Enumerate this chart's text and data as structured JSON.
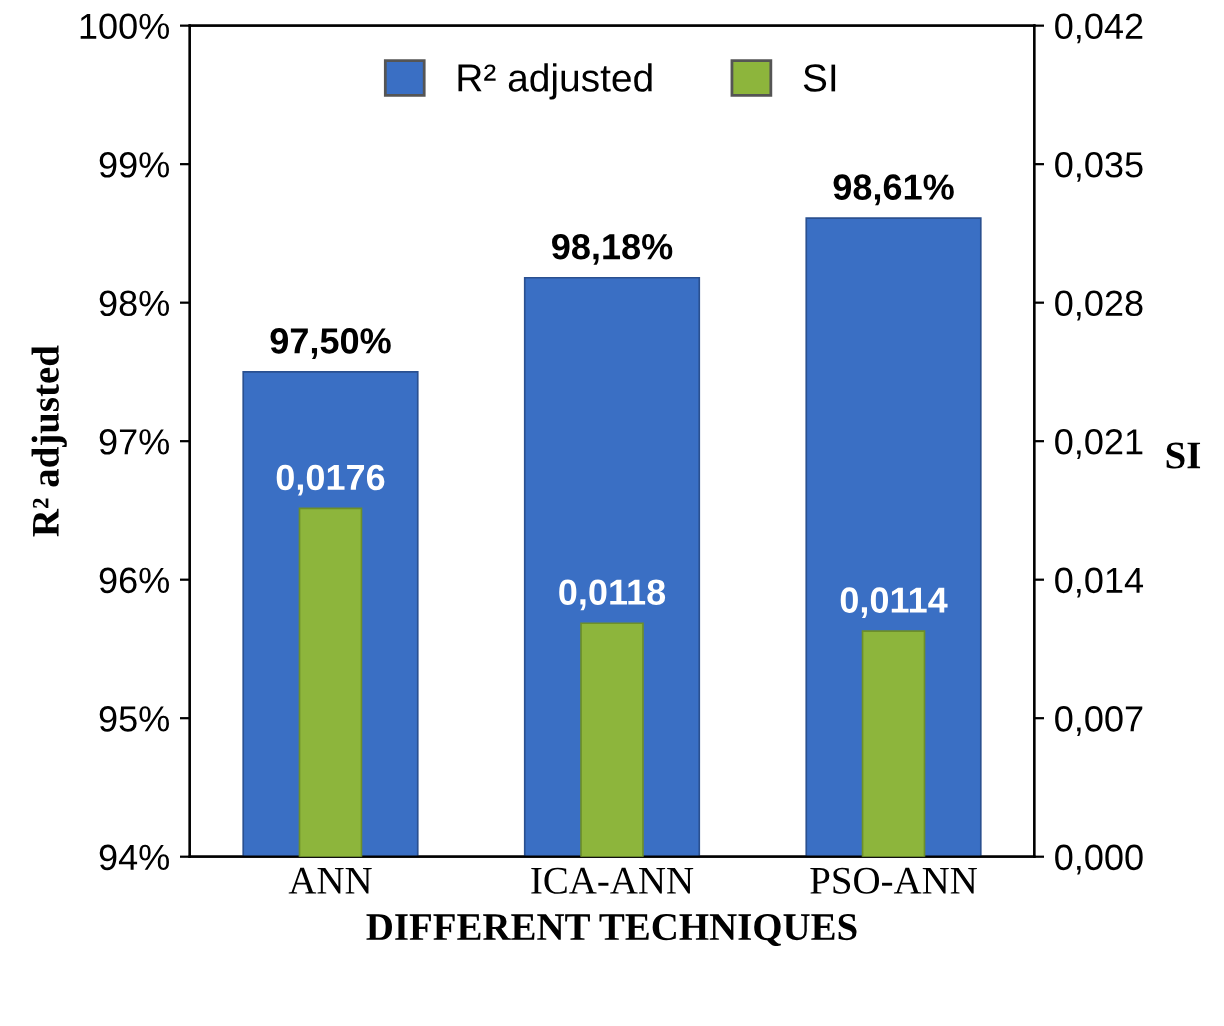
{
  "chart_data": {
    "type": "bar",
    "categories": [
      "ANN",
      "ICA-ANN",
      "PSO-ANN"
    ],
    "xlabel": "DIFFERENT TECHNIQUES",
    "ylabel": "R² adjusted",
    "y2label": "SI",
    "series": [
      {
        "name": "R² adjusted",
        "color": "#3a6fc4",
        "values": [
          97.5,
          98.18,
          98.61
        ],
        "value_labels": [
          "97,50%",
          "98,18%",
          "98,61%"
        ]
      },
      {
        "name": "SI",
        "color": "#8db53c",
        "axis": "y2",
        "values": [
          0.0176,
          0.0118,
          0.0114
        ],
        "value_labels": [
          "0,0176",
          "0,0118",
          "0,0114"
        ]
      }
    ],
    "ylim": [
      94,
      100
    ],
    "yticks": [
      {
        "value": 94,
        "label": "94%"
      },
      {
        "value": 95,
        "label": "95%"
      },
      {
        "value": 96,
        "label": "96%"
      },
      {
        "value": 97,
        "label": "97%"
      },
      {
        "value": 98,
        "label": "98%"
      },
      {
        "value": 99,
        "label": "99%"
      },
      {
        "value": 100,
        "label": "100%"
      }
    ],
    "y2lim": [
      0,
      0.042
    ],
    "y2ticks": [
      {
        "value": 0,
        "label": "0,000"
      },
      {
        "value": 0.007,
        "label": "0,007"
      },
      {
        "value": 0.014,
        "label": "0,014"
      },
      {
        "value": 0.021,
        "label": "0,021"
      },
      {
        "value": 0.028,
        "label": "0,028"
      },
      {
        "value": 0.035,
        "label": "0,035"
      },
      {
        "value": 0.042,
        "label": "0,042"
      }
    ],
    "legend": "top",
    "grid": false
  }
}
